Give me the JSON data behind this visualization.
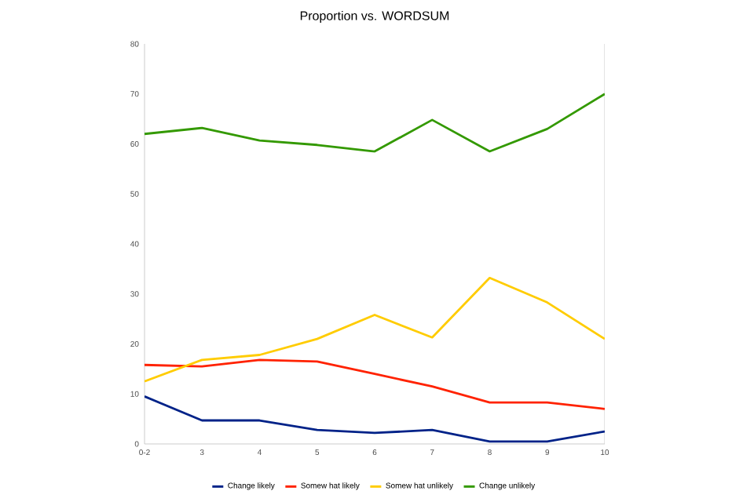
{
  "chart_data": {
    "type": "line",
    "title": "Proportion vs. WORDSUM",
    "categories": [
      "0-2",
      "3",
      "4",
      "5",
      "6",
      "7",
      "8",
      "9",
      "10"
    ],
    "ylim": [
      0,
      80
    ],
    "yticks": [
      0,
      10,
      20,
      30,
      40,
      50,
      60,
      70,
      80
    ],
    "grid": false,
    "legend": "bottom",
    "line_style": "solid",
    "series": [
      {
        "name": "Change likely",
        "color": "#002288",
        "values": [
          9.5,
          4.7,
          4.7,
          2.8,
          2.2,
          2.8,
          0.5,
          0.5,
          2.5
        ]
      },
      {
        "name": "Somew hat likely",
        "color": "#ff2200",
        "values": [
          15.8,
          15.5,
          16.8,
          16.5,
          14,
          11.5,
          8.3,
          8.3,
          7
        ]
      },
      {
        "name": "Somew hat unlikely",
        "color": "#ffcc00",
        "values": [
          12.5,
          16.8,
          17.8,
          21,
          25.8,
          21.3,
          33.2,
          28.3,
          21
        ]
      },
      {
        "name": "Change unlikely",
        "color": "#339900",
        "values": [
          62,
          63.2,
          60.7,
          59.8,
          58.5,
          64.8,
          58.5,
          63,
          70
        ]
      }
    ]
  }
}
